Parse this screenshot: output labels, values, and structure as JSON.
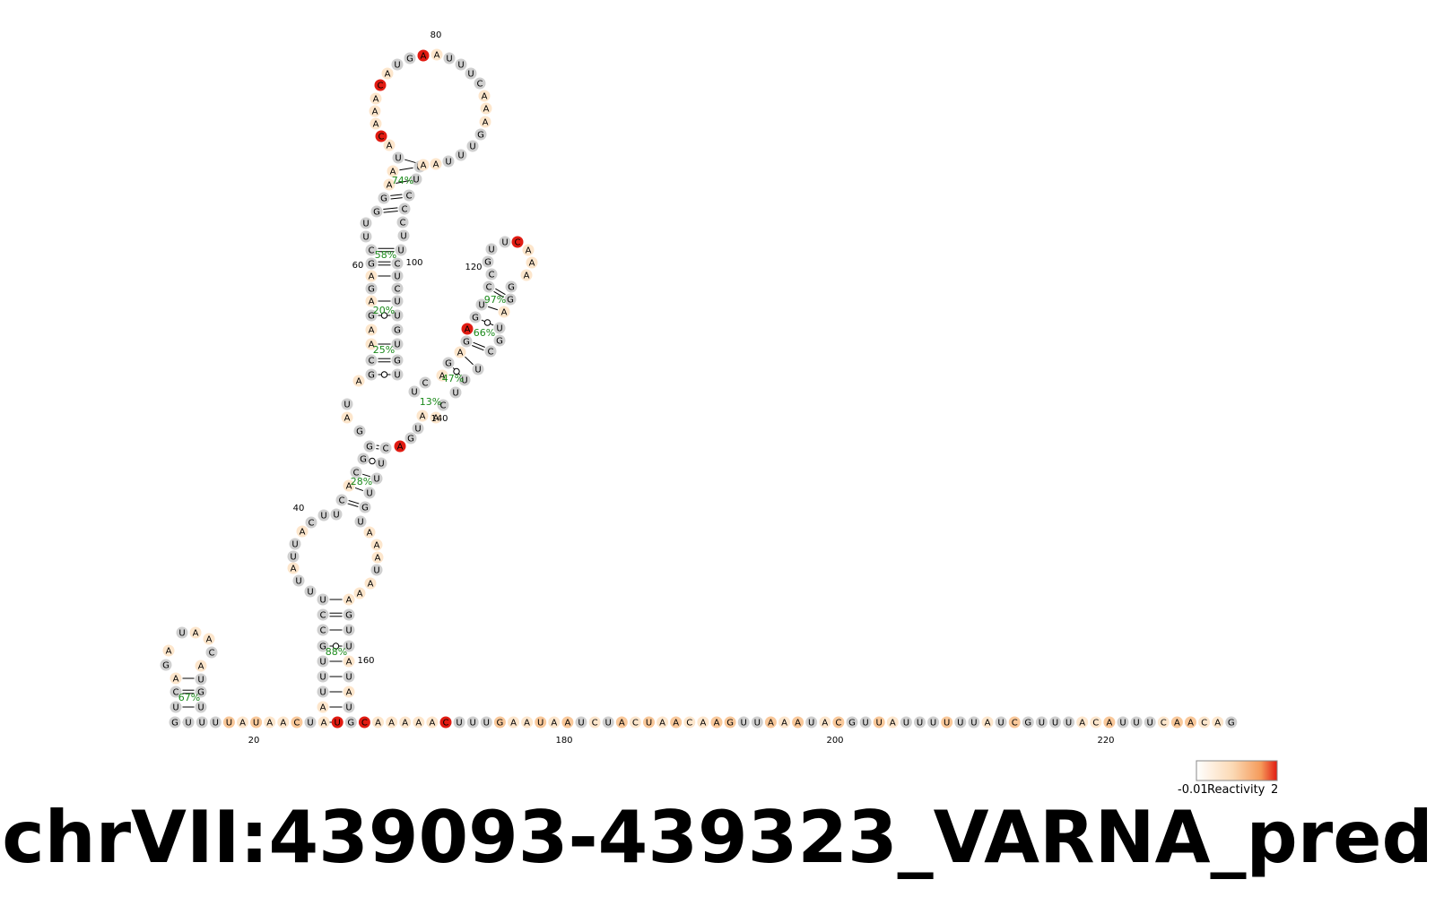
{
  "title": "chrVII:439093-439323_VARNA_pred",
  "colors": {
    "unreactive": "#cfcfcf",
    "low": "#fde6cc",
    "mid": "#f9c89a",
    "high": "#e11b12",
    "base_pair": "#000000",
    "probability_text": "#1b8a1b"
  },
  "legend": {
    "label": "Reactivity",
    "min_label": "-0.01",
    "max_label": "2",
    "gradient": [
      "#ffffff",
      "#fbd9b4",
      "#f59a5a",
      "#e11b12"
    ]
  },
  "sequence_bottom": "GUUUUAUAACUAUGCAAAAACUUUGAAUAAUCUACUAACAAGUUAAAUACGUUAUUUUUUAUCGUUUACAUUUCAACAG",
  "index_labels": [
    "20",
    "40",
    "60",
    "80",
    "100",
    "120",
    "140",
    "160",
    "180",
    "200",
    "220"
  ],
  "helix_probabilities": [
    "67%",
    "88%",
    "28%",
    "13%",
    "47%",
    "66%",
    "97%",
    "25%",
    "20%",
    "58%",
    "74%"
  ],
  "nucleotides": {
    "left_hairpin": [
      "G",
      "U",
      "G",
      "C",
      "A",
      "G",
      "A",
      "U",
      "A",
      "A",
      "C",
      "A",
      "U",
      "G",
      "U"
    ],
    "stem1_left": [
      "A",
      "U",
      "U",
      "U",
      "C",
      "G",
      "C",
      "U"
    ],
    "loop40": [
      "U",
      "U",
      "A",
      "U",
      "U",
      "C",
      "U",
      "U",
      "U",
      "A",
      "A",
      "U",
      "A",
      "A",
      "A"
    ],
    "stem1_right": [
      "U",
      "A",
      "U",
      "U",
      "U",
      "U",
      "G",
      "A"
    ],
    "stem2_left": [
      "C",
      "A",
      "C",
      "G",
      "G"
    ],
    "stem2_right": [
      "G",
      "U",
      "U",
      "U",
      "C"
    ],
    "loop_mid_left": [
      "G",
      "A",
      "U",
      "A"
    ],
    "stem3_left": [
      "G",
      "C",
      "A",
      "A",
      "G",
      "A",
      "G",
      "A",
      "C",
      "G",
      "U",
      "U"
    ],
    "stem3_right": [
      "U",
      "G",
      "C",
      "G",
      "U",
      "C",
      "U",
      "U",
      "G",
      "U",
      "C",
      "C"
    ],
    "loop_top": [
      "U",
      "A",
      "C",
      "A",
      "A",
      "C",
      "A",
      "U",
      "G",
      "A",
      "A",
      "U",
      "U",
      "U",
      "C",
      "A",
      "A",
      "A",
      "G",
      "U",
      "U",
      "U",
      "A"
    ],
    "stem_top_left": [
      "A",
      "A",
      "G"
    ],
    "stem_top_right": [
      "U",
      "C",
      "C"
    ],
    "junction_right": [
      "U",
      "G",
      "A"
    ],
    "side_stem_left": [
      "A",
      "G",
      "A",
      "G",
      "G",
      "A",
      "U",
      "C",
      "G"
    ],
    "side_loop": [
      "U",
      "U",
      "C",
      "A",
      "A",
      "A"
    ],
    "side_stem_right": [
      "G",
      "C",
      "U",
      "A",
      "U",
      "G",
      "C",
      "U",
      "U"
    ],
    "junction_right2": [
      "C",
      "G"
    ]
  }
}
